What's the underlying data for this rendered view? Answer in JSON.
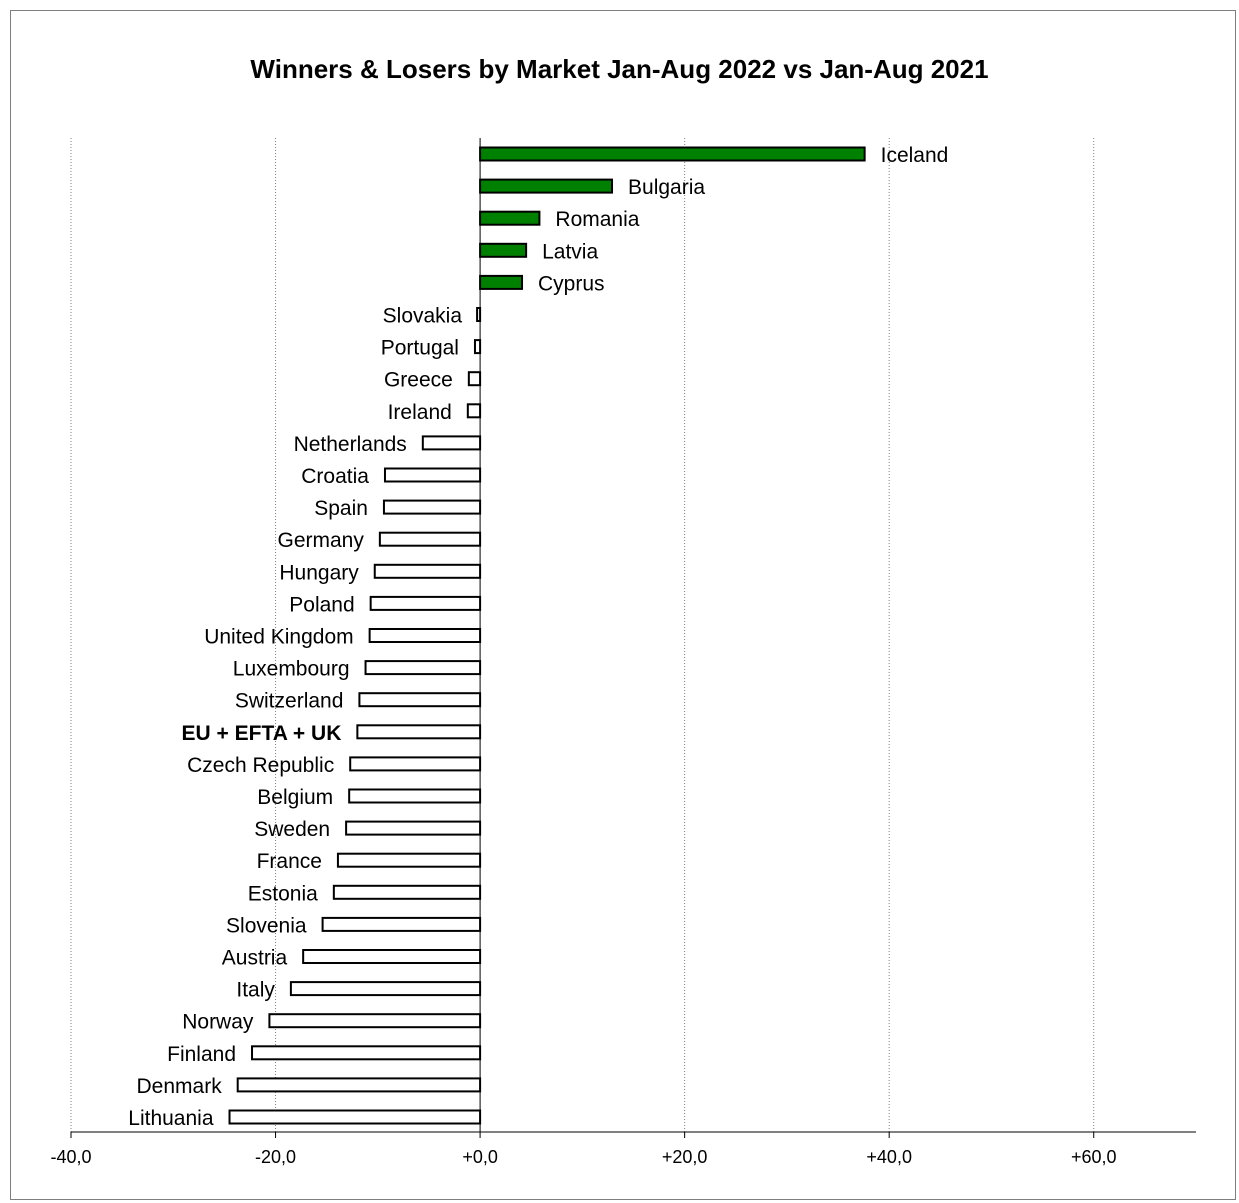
{
  "chart_data": {
    "type": "bar",
    "orientation": "horizontal",
    "title": "Winners & Losers by Market  Jan-Aug 2022 vs Jan-Aug 2021",
    "xlabel": "",
    "ylabel": "",
    "xlim": [
      -40,
      70
    ],
    "x_ticks": [
      "-40,0",
      "-20,0",
      "+0,0",
      "+20,0",
      "+40,0",
      "+60,0"
    ],
    "x_tick_values": [
      -40,
      -20,
      0,
      20,
      40,
      60
    ],
    "grid": "vertical-dotted",
    "colors": {
      "positive": "#008000",
      "negative": "#ffffff",
      "outline": "#000000"
    },
    "categories": [
      "Iceland",
      "Bulgaria",
      "Romania",
      "Latvia",
      "Cyprus",
      "Slovakia",
      "Portugal",
      "Greece",
      "Ireland",
      "Netherlands",
      "Croatia",
      "Spain",
      "Germany",
      "Hungary",
      "Poland",
      "United Kingdom",
      "Luxembourg",
      "Switzerland",
      "EU + EFTA + UK",
      "Czech Republic",
      "Belgium",
      "Sweden",
      "France",
      "Estonia",
      "Slovenia",
      "Austria",
      "Italy",
      "Norway",
      "Finland",
      "Denmark",
      "Lithuania"
    ],
    "values": [
      37.6,
      12.9,
      5.8,
      4.5,
      4.1,
      -0.2,
      -0.5,
      -1.1,
      -1.2,
      -5.6,
      -9.3,
      -9.4,
      -9.8,
      -10.3,
      -10.7,
      -10.8,
      -11.2,
      -11.8,
      -12.0,
      -12.7,
      -12.8,
      -13.1,
      -13.9,
      -14.3,
      -15.4,
      -17.3,
      -18.5,
      -20.6,
      -22.3,
      -23.7,
      -24.5
    ],
    "bold_categories": [
      "EU + EFTA + UK"
    ]
  }
}
